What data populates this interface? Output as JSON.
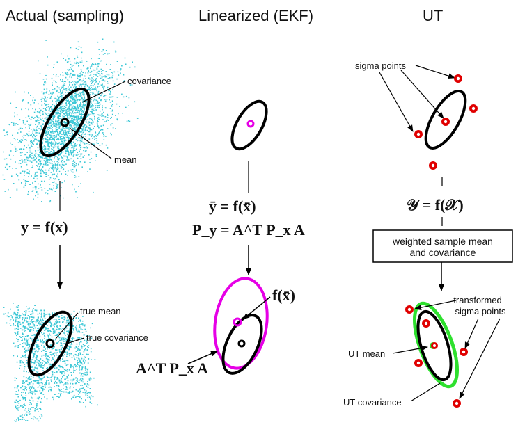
{
  "titles": {
    "actual": "Actual (sampling)",
    "ekf": "Linearized (EKF)",
    "ut": "UT"
  },
  "actual": {
    "covariance_label": "covariance",
    "mean_label": "mean",
    "equation": "y = f(x)",
    "true_mean_label": "true mean",
    "true_covariance_label": "true covariance"
  },
  "ekf": {
    "mean_equation": "ȳ = f(x̄)",
    "cov_equation": "P_y = A^T P_x A",
    "f_label": "f(x̄)",
    "cov_label": "A^T P_x A"
  },
  "ut": {
    "sigma_points_label": "sigma points",
    "equation": "𝒴 = f(𝒳)",
    "box_line1": "weighted sample mean",
    "box_line2": "and covariance",
    "transformed_line1": "transformed",
    "transformed_line2": "sigma points",
    "ut_mean_label": "UT mean",
    "ut_covariance_label": "UT covariance"
  },
  "colors": {
    "samples": "#3cc7d6",
    "ellipse": "#000000",
    "ekf_ellipse": "#e600e6",
    "sigma": "#e00000",
    "ut_ellipse": "#2ee02e"
  }
}
